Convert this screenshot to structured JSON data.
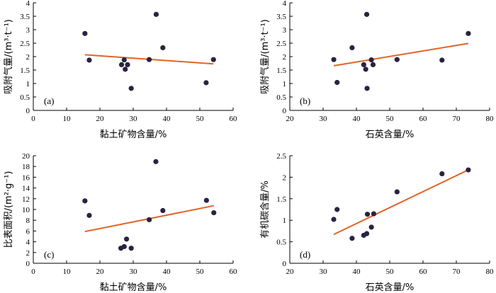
{
  "colors": {
    "points": "#2b2240",
    "fit_line": "#e2632a",
    "axes": "#000000"
  },
  "chart_data": [
    {
      "type": "scatter",
      "panel_label": "(a)",
      "xlabel": "黏土矿物含量/%",
      "ylabel": "吸附气量/(m³·t⁻¹)",
      "xlim": [
        0,
        60
      ],
      "ylim": [
        0,
        4
      ],
      "xticks": [
        0,
        10,
        20,
        30,
        40,
        50,
        60
      ],
      "yticks": [
        0,
        0.5,
        1,
        1.5,
        2,
        2.5,
        3,
        3.5,
        4
      ],
      "ytick_labels": [
        "0",
        "0.5",
        "1",
        "1.5",
        "2",
        "2.5",
        "3",
        "3.5",
        "4"
      ],
      "points": [
        {
          "x": 15.5,
          "y": 2.86
        },
        {
          "x": 16.8,
          "y": 1.87
        },
        {
          "x": 26.5,
          "y": 1.7
        },
        {
          "x": 27.3,
          "y": 1.88
        },
        {
          "x": 27.6,
          "y": 1.53
        },
        {
          "x": 28.3,
          "y": 1.7
        },
        {
          "x": 29.4,
          "y": 0.82
        },
        {
          "x": 34.8,
          "y": 1.89
        },
        {
          "x": 36.9,
          "y": 3.57
        },
        {
          "x": 38.9,
          "y": 2.33
        },
        {
          "x": 51.9,
          "y": 1.03
        },
        {
          "x": 54.1,
          "y": 1.89
        }
      ],
      "fit": [
        {
          "x": 15.5,
          "y": 2.07
        },
        {
          "x": 54.1,
          "y": 1.73
        }
      ]
    },
    {
      "type": "scatter",
      "panel_label": "(b)",
      "xlabel": "石英含量/%",
      "ylabel": "吸附气量/(m³·t⁻¹)",
      "xlim": [
        20,
        80
      ],
      "ylim": [
        0,
        4
      ],
      "xticks": [
        20,
        30,
        40,
        50,
        60,
        70,
        80
      ],
      "yticks": [
        0,
        0.5,
        1,
        1.5,
        2,
        2.5,
        3,
        3.5,
        4
      ],
      "ytick_labels": [
        "0",
        "0.5",
        "1",
        "1.5",
        "2",
        "2.5",
        "3",
        "3.5",
        "4"
      ],
      "points": [
        {
          "x": 33.2,
          "y": 1.89
        },
        {
          "x": 34.2,
          "y": 1.04
        },
        {
          "x": 38.7,
          "y": 2.33
        },
        {
          "x": 42.2,
          "y": 1.7
        },
        {
          "x": 42.8,
          "y": 1.53
        },
        {
          "x": 43.1,
          "y": 3.57
        },
        {
          "x": 43.2,
          "y": 0.82
        },
        {
          "x": 44.5,
          "y": 1.88
        },
        {
          "x": 45.0,
          "y": 1.7
        },
        {
          "x": 52.2,
          "y": 1.89
        },
        {
          "x": 65.7,
          "y": 1.87
        },
        {
          "x": 73.6,
          "y": 2.86
        }
      ],
      "fit": [
        {
          "x": 33.2,
          "y": 1.66
        },
        {
          "x": 73.6,
          "y": 2.49
        }
      ]
    },
    {
      "type": "scatter",
      "panel_label": "(c)",
      "xlabel": "黏土矿物含量/%",
      "ylabel": "比表面积/(m²·g⁻¹)",
      "xlim": [
        0,
        60
      ],
      "ylim": [
        0,
        20
      ],
      "xticks": [
        0,
        10,
        20,
        30,
        40,
        50,
        60
      ],
      "yticks": [
        0,
        2,
        4,
        6,
        8,
        10,
        12,
        14,
        16,
        18,
        20
      ],
      "ytick_labels": [
        "0",
        "2",
        "4",
        "6",
        "8",
        "10",
        "12",
        "14",
        "16",
        "18",
        "20"
      ],
      "points": [
        {
          "x": 15.5,
          "y": 11.6
        },
        {
          "x": 16.8,
          "y": 8.9
        },
        {
          "x": 26.3,
          "y": 2.8
        },
        {
          "x": 27.3,
          "y": 3.1
        },
        {
          "x": 28.0,
          "y": 4.5
        },
        {
          "x": 29.4,
          "y": 2.8
        },
        {
          "x": 34.8,
          "y": 8.1
        },
        {
          "x": 36.8,
          "y": 18.9
        },
        {
          "x": 38.9,
          "y": 9.8
        },
        {
          "x": 52.0,
          "y": 11.7
        },
        {
          "x": 54.2,
          "y": 9.4
        }
      ],
      "fit": [
        {
          "x": 15.5,
          "y": 5.9
        },
        {
          "x": 54.2,
          "y": 10.7
        }
      ]
    },
    {
      "type": "scatter",
      "panel_label": "(d)",
      "xlabel": "石英含量/%",
      "ylabel": "有机碳含量/%",
      "xlim": [
        20,
        80
      ],
      "ylim": [
        0,
        2.5
      ],
      "xticks": [
        20,
        30,
        40,
        50,
        60,
        70,
        80
      ],
      "yticks": [
        0,
        0.5,
        1,
        1.5,
        2,
        2.5
      ],
      "ytick_labels": [
        "0",
        "0.5",
        "1",
        "1.5",
        "2",
        "2.5"
      ],
      "points": [
        {
          "x": 33.2,
          "y": 1.02
        },
        {
          "x": 34.2,
          "y": 1.25
        },
        {
          "x": 38.7,
          "y": 0.58
        },
        {
          "x": 42.2,
          "y": 0.65
        },
        {
          "x": 43.1,
          "y": 0.69
        },
        {
          "x": 43.3,
          "y": 1.14
        },
        {
          "x": 44.5,
          "y": 0.84
        },
        {
          "x": 45.2,
          "y": 1.15
        },
        {
          "x": 52.2,
          "y": 1.66
        },
        {
          "x": 65.7,
          "y": 2.08
        },
        {
          "x": 73.6,
          "y": 2.17
        }
      ],
      "fit": [
        {
          "x": 33.2,
          "y": 0.67
        },
        {
          "x": 73.6,
          "y": 2.17
        }
      ]
    }
  ]
}
